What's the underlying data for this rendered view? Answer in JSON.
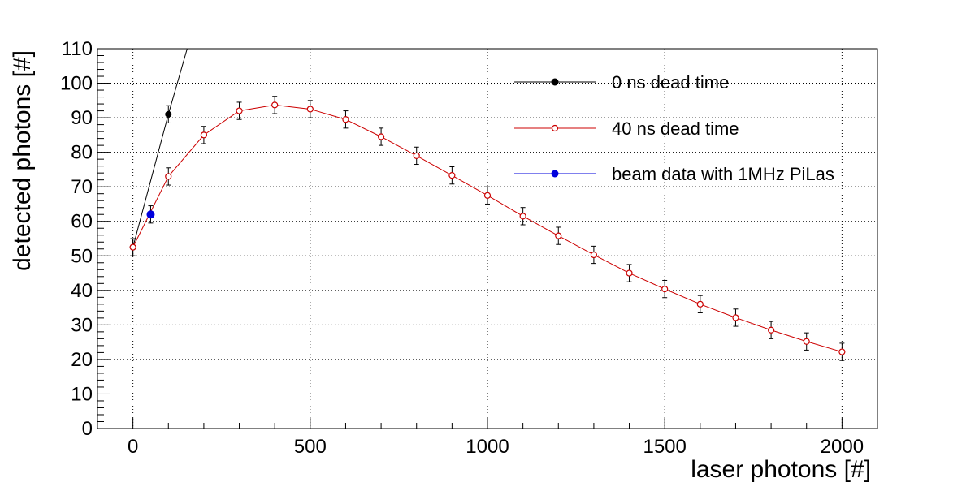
{
  "chart_data": {
    "type": "scatter",
    "xlabel": "laser photons [#]",
    "ylabel": "detected photons [#]",
    "xlim": [
      -100,
      2100
    ],
    "ylim": [
      0,
      110
    ],
    "x_ticks": [
      0,
      500,
      1000,
      1500,
      2000
    ],
    "y_ticks": [
      0,
      10,
      20,
      30,
      40,
      50,
      60,
      70,
      80,
      90,
      100,
      110
    ],
    "grid": true,
    "grid_style": "dotted",
    "legend_position": "top-right",
    "series": [
      {
        "name": "0 ns dead time",
        "color": "#000000",
        "marker": "filled-circle",
        "x": [
          0,
          100
        ],
        "y": [
          52.5,
          91
        ],
        "yerr": [
          2.5,
          2.5
        ],
        "curve_x": [
          0,
          100,
          153
        ],
        "curve_y": [
          52.5,
          91,
          110
        ]
      },
      {
        "name": "40 ns dead time",
        "color": "#cc0000",
        "marker": "open-circle",
        "x": [
          0,
          100,
          200,
          300,
          400,
          500,
          600,
          700,
          800,
          900,
          1000,
          1100,
          1200,
          1300,
          1400,
          1500,
          1600,
          1700,
          1800,
          1900,
          2000
        ],
        "y": [
          52.5,
          73,
          85,
          92,
          93.7,
          92.5,
          89.5,
          84.5,
          79,
          73.3,
          67.5,
          61.5,
          55.8,
          50.3,
          45,
          40.4,
          36,
          32.1,
          28.5,
          25.2,
          22.2
        ],
        "yerr": [
          2.5,
          2.5,
          2.5,
          2.5,
          2.5,
          2.5,
          2.5,
          2.5,
          2.5,
          2.5,
          2.5,
          2.5,
          2.5,
          2.5,
          2.5,
          2.5,
          2.5,
          2.5,
          2.5,
          2.5,
          2.5
        ]
      },
      {
        "name": "beam data with 1MHz PiLas",
        "color": "#0000dd",
        "marker": "filled-circle",
        "x": [
          50
        ],
        "y": [
          62
        ],
        "yerr": [
          2.5
        ]
      }
    ]
  }
}
